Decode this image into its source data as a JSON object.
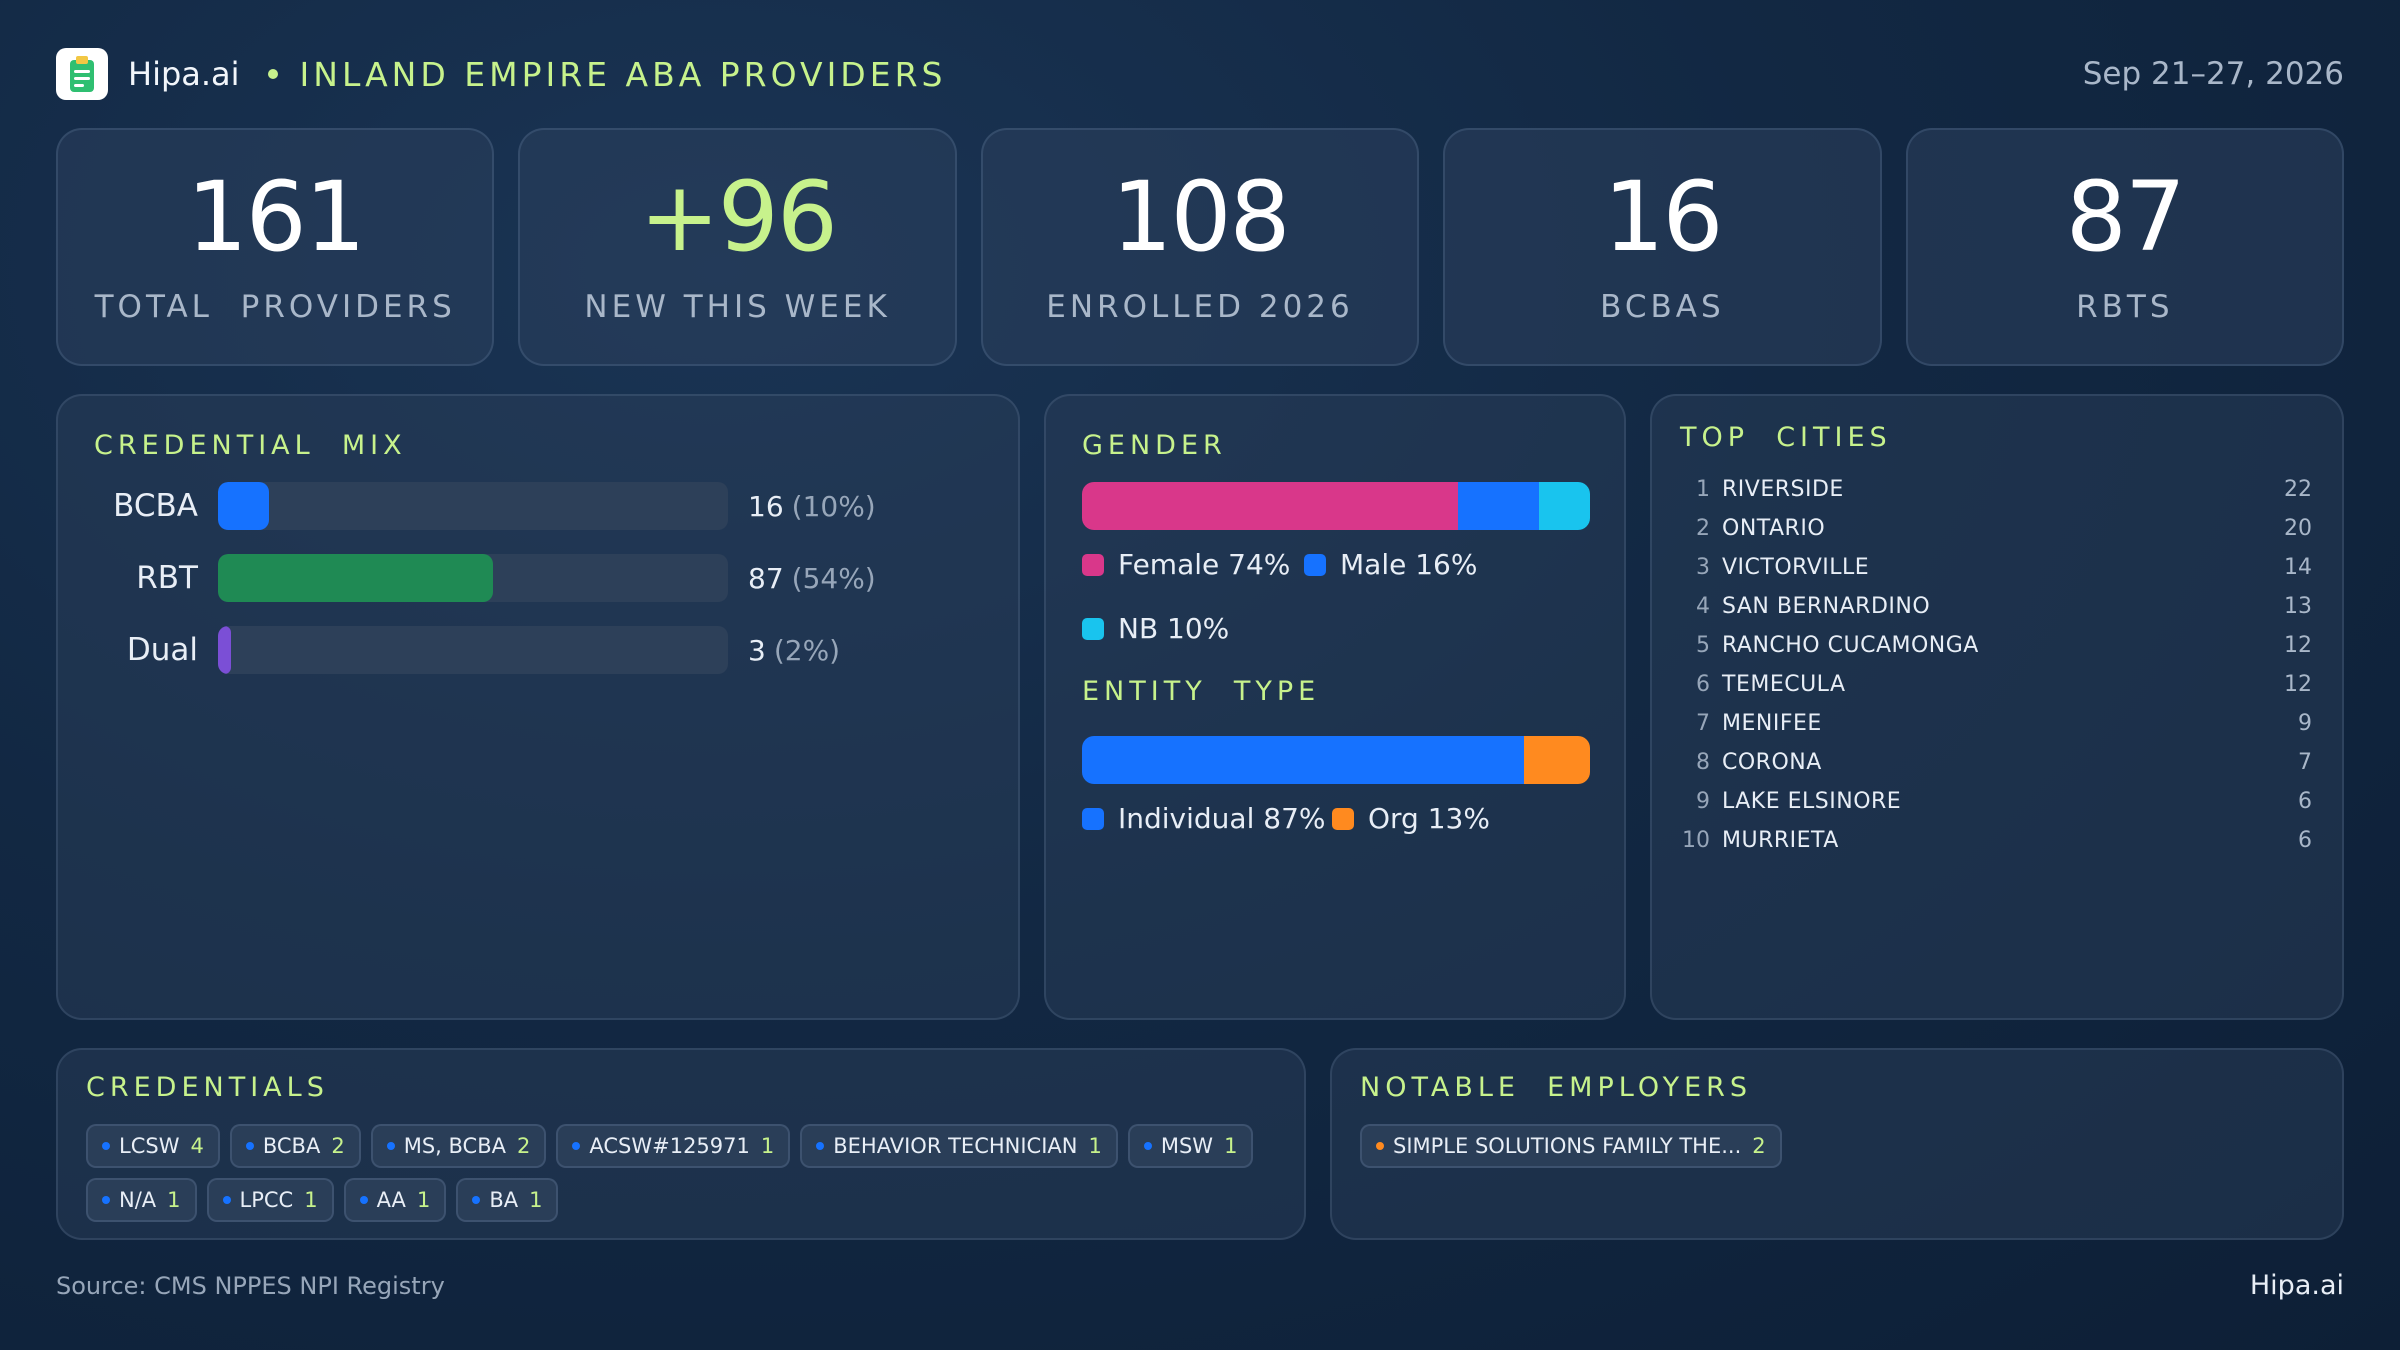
{
  "header": {
    "brand": "Hipa.ai",
    "title": "INLAND EMPIRE ABA PROVIDERS",
    "date": "Sep 21–27, 2026",
    "logo_icon": "clipboard-icon"
  },
  "kpis": [
    {
      "value": "161",
      "label": "TOTAL  PROVIDERS"
    },
    {
      "value": "+96",
      "label": "NEW THIS WEEK"
    },
    {
      "value": "108",
      "label": "ENROLLED 2026"
    },
    {
      "value": "16",
      "label": "BCBAS"
    },
    {
      "value": "87",
      "label": "RBTS"
    }
  ],
  "credential_mix": {
    "title": "CREDENTIAL  MIX",
    "rows": [
      {
        "name": "BCBA",
        "count": "16",
        "pct": "(10%)",
        "fraction": 0.1,
        "color": "#1672ff"
      },
      {
        "name": "RBT",
        "count": "87",
        "pct": "(54%)",
        "fraction": 0.54,
        "color": "#1f8a54"
      },
      {
        "name": "Dual",
        "count": "3",
        "pct": "(2%)",
        "fraction": 0.02,
        "color": "#7b4fd6"
      }
    ]
  },
  "gender": {
    "title": "GENDER",
    "segments": [
      {
        "label": "Female 74%",
        "fraction": 0.74,
        "color": "#d9378a"
      },
      {
        "label": "Male 16%",
        "fraction": 0.16,
        "color": "#1672ff"
      },
      {
        "label": "NB 10%",
        "fraction": 0.1,
        "color": "#19c4ee"
      }
    ]
  },
  "entity_type": {
    "title": "ENTITY  TYPE",
    "segments": [
      {
        "label": "Individual 87%",
        "fraction": 0.87,
        "color": "#1672ff"
      },
      {
        "label": "Org 13%",
        "fraction": 0.13,
        "color": "#ff8a1f"
      }
    ]
  },
  "top_cities": {
    "title": "TOP  CITIES",
    "rows": [
      {
        "rank": "1",
        "name": "RIVERSIDE",
        "count": "22"
      },
      {
        "rank": "2",
        "name": "ONTARIO",
        "count": "20"
      },
      {
        "rank": "3",
        "name": "VICTORVILLE",
        "count": "14"
      },
      {
        "rank": "4",
        "name": "SAN BERNARDINO",
        "count": "13"
      },
      {
        "rank": "5",
        "name": "RANCHO CUCAMONGA",
        "count": "12"
      },
      {
        "rank": "6",
        "name": "TEMECULA",
        "count": "12"
      },
      {
        "rank": "7",
        "name": "MENIFEE",
        "count": "9"
      },
      {
        "rank": "8",
        "name": "CORONA",
        "count": "7"
      },
      {
        "rank": "9",
        "name": "LAKE ELSINORE",
        "count": "6"
      },
      {
        "rank": "10",
        "name": "MURRIETA",
        "count": "6"
      }
    ]
  },
  "credentials": {
    "title": "CREDENTIALS",
    "dot_color": "#1672ff",
    "items": [
      {
        "label": "LCSW",
        "count": "4"
      },
      {
        "label": "BCBA",
        "count": "2"
      },
      {
        "label": "MS, BCBA",
        "count": "2"
      },
      {
        "label": "ACSW#125971",
        "count": "1"
      },
      {
        "label": "BEHAVIOR TECHNICIAN",
        "count": "1"
      },
      {
        "label": "MSW",
        "count": "1"
      },
      {
        "label": "N/A",
        "count": "1"
      },
      {
        "label": "LPCC",
        "count": "1"
      },
      {
        "label": "AA",
        "count": "1"
      },
      {
        "label": "BA",
        "count": "1"
      }
    ]
  },
  "employers": {
    "title": "NOTABLE  EMPLOYERS",
    "dot_color": "#ff8a1f",
    "items": [
      {
        "label": "SIMPLE SOLUTIONS FAMILY THE...",
        "count": "2"
      }
    ]
  },
  "footer": {
    "source": "Source: CMS NPPES NPI Registry",
    "brand": "Hipa.ai"
  }
}
